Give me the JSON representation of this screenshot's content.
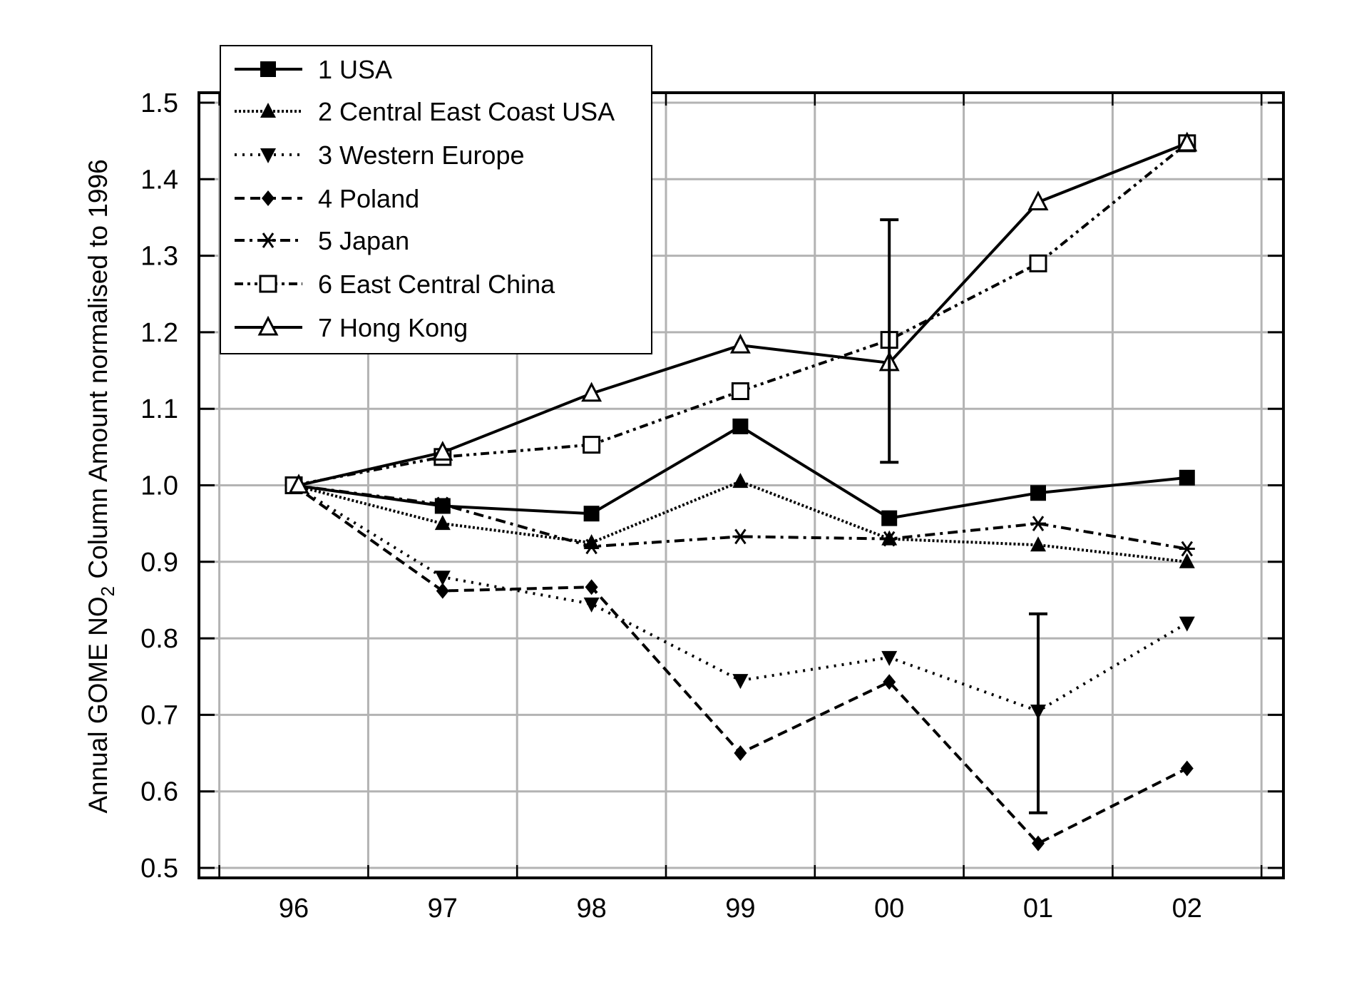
{
  "chart_data": {
    "type": "line",
    "title": "",
    "xlabel": "",
    "ylabel": "Annual GOME NO2 Column Amount normalised to 1996",
    "ylabel_parts": {
      "pre": "Annual GOME NO",
      "sub": "2",
      "post": " Column Amount normalised to 1996"
    },
    "categories": [
      "96",
      "97",
      "98",
      "99",
      "00",
      "01",
      "02"
    ],
    "yticks": [
      "0.5",
      "0.6",
      "0.7",
      "0.8",
      "0.9",
      "1.0",
      "1.1",
      "1.2",
      "1.3",
      "1.4",
      "1.5"
    ],
    "ylim": [
      0.5,
      1.5
    ],
    "grid": true,
    "legend_position": "top-left",
    "series": [
      {
        "name": "1 USA",
        "line": "solid",
        "marker": "filled-square",
        "values": [
          1.0,
          0.973,
          0.963,
          1.077,
          0.957,
          0.99,
          1.01
        ]
      },
      {
        "name": "2 Central East Coast USA",
        "line": "dense-dotted",
        "marker": "filled-triangle-up",
        "values": [
          1.0,
          0.95,
          0.925,
          1.005,
          0.93,
          0.922,
          0.9
        ]
      },
      {
        "name": "3 Western Europe",
        "line": "dotted",
        "marker": "filled-triangle-down",
        "values": [
          1.0,
          0.88,
          0.845,
          0.745,
          0.775,
          0.705,
          0.82
        ]
      },
      {
        "name": "4 Poland",
        "line": "dashed",
        "marker": "filled-diamond",
        "values": [
          1.0,
          0.862,
          0.867,
          0.65,
          0.743,
          0.532,
          0.63
        ]
      },
      {
        "name": "5 Japan",
        "line": "dash-dot",
        "marker": "asterisk",
        "values": [
          1.0,
          0.975,
          0.92,
          0.933,
          0.93,
          0.95,
          0.917
        ]
      },
      {
        "name": "6 East Central China",
        "line": "dash-dot-dot",
        "marker": "open-square",
        "values": [
          1.0,
          1.037,
          1.053,
          1.123,
          1.19,
          1.29,
          1.447
        ]
      },
      {
        "name": "7 Hong Kong",
        "line": "solid",
        "marker": "open-triangle-up",
        "values": [
          1.0,
          1.043,
          1.12,
          1.183,
          1.16,
          1.37,
          1.447
        ]
      }
    ],
    "error_bars": [
      {
        "category": "00",
        "low": 1.03,
        "high": 1.347
      },
      {
        "category": "01",
        "low": 0.572,
        "high": 0.832
      }
    ]
  }
}
